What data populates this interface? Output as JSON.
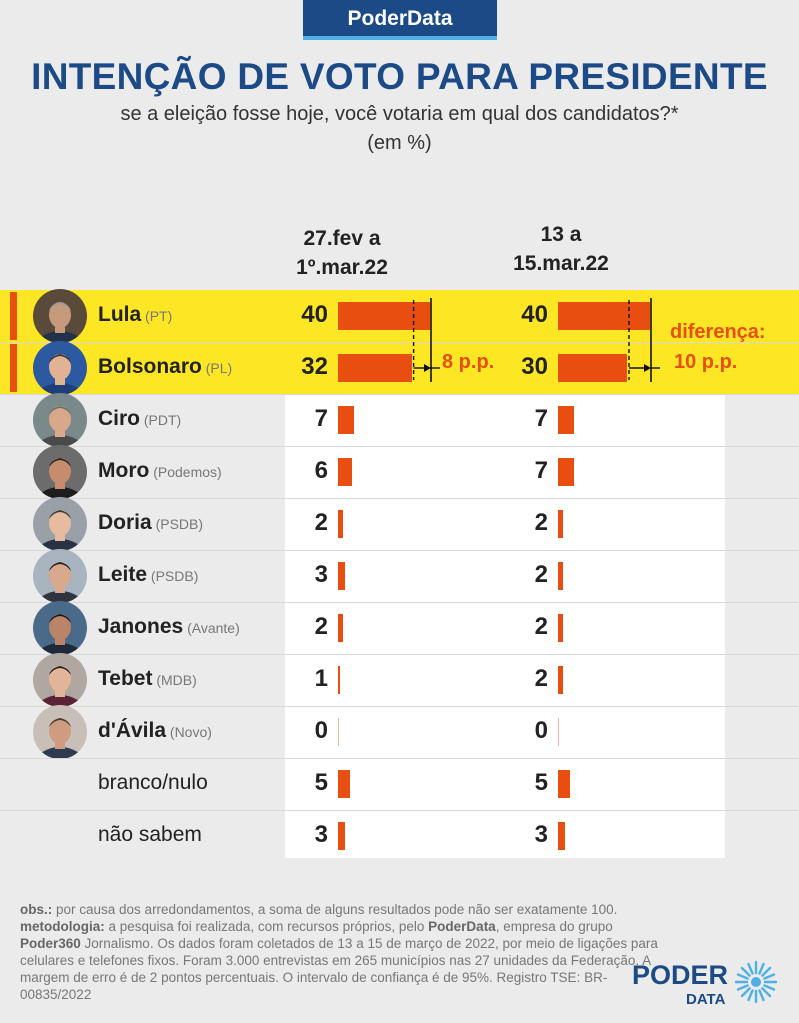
{
  "brand": "PoderData",
  "title": "INTENÇÃO DE VOTO PARA PRESIDENTE",
  "subtitle": "se a eleição fosse hoje, você votaria em qual dos candidatos?*",
  "unit": "(em %)",
  "chart_data": {
    "type": "bar",
    "orientation": "horizontal",
    "periods": [
      {
        "line1": "27.fev a",
        "line2": "1º.mar.22"
      },
      {
        "line1": "13 a",
        "line2": "15.mar.22"
      }
    ],
    "categories": [
      "Lula",
      "Bolsonaro",
      "Ciro",
      "Moro",
      "Doria",
      "Leite",
      "Janones",
      "Tebet",
      "d'Ávila",
      "branco/nulo",
      "não sabem"
    ],
    "parties": [
      "(PT)",
      "(PL)",
      "(PDT)",
      "(Podemos)",
      "(PSDB)",
      "(PSDB)",
      "(Avante)",
      "(MDB)",
      "(Novo)",
      "",
      ""
    ],
    "series": [
      {
        "values": [
          40,
          32,
          7,
          6,
          2,
          3,
          2,
          1,
          0,
          5,
          3
        ]
      },
      {
        "values": [
          40,
          30,
          7,
          7,
          2,
          2,
          2,
          2,
          0,
          5,
          3
        ]
      }
    ],
    "annotations": {
      "gap1": "8 p.p.",
      "gap2_label": "diferença:",
      "gap2": "10 p.p."
    },
    "colors": {
      "bar": "#e84e0f",
      "highlight": "#fde724",
      "brand": "#1b4a86"
    }
  },
  "notes": {
    "obs_label": "obs.:",
    "obs_text": " por causa dos arredondamentos, a soma de alguns resultados pode não ser exatamente 100.",
    "met_label": "metodologia:",
    "met_text1": " a pesquisa foi realizada, com recursos próprios, pelo ",
    "met_brand1": "PoderData",
    "met_text2": ", empresa do grupo ",
    "met_brand2": "Poder360",
    "met_text3": " Jornalismo. Os dados foram coletados de 13 a 15 de março de 2022, por meio de ligações para celulares e telefones fixos. Foram 3.000 entrevistas em 265 municípios nas 27 unidades da Federação. A margem de erro é de 2 pontos percentuais. O intervalo de confiança é de 95%. Registro TSE: BR-00835/2022"
  },
  "logo": {
    "word1": "PODER",
    "word2": "DATA"
  }
}
